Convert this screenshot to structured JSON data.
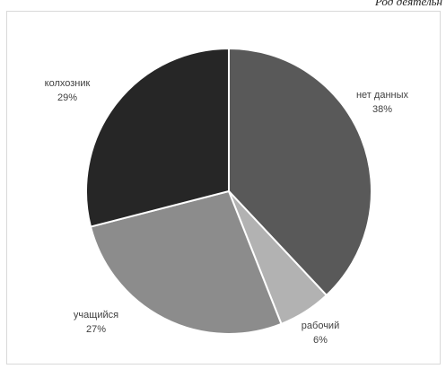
{
  "header": {
    "caption": "Род деятельн"
  },
  "chart_data": {
    "type": "pie",
    "title": "",
    "categories": [
      "нет данных",
      "рабочий",
      "учащийся",
      "колхозник"
    ],
    "values": [
      38,
      6,
      27,
      29
    ],
    "value_labels": [
      "38%",
      "6%",
      "27%",
      "29%"
    ],
    "colors": [
      "#595959",
      "#b2b2b2",
      "#8c8c8c",
      "#262626"
    ],
    "start_angle_deg": 0,
    "direction": "clockwise",
    "legend": "none",
    "data_labels": "outside"
  }
}
